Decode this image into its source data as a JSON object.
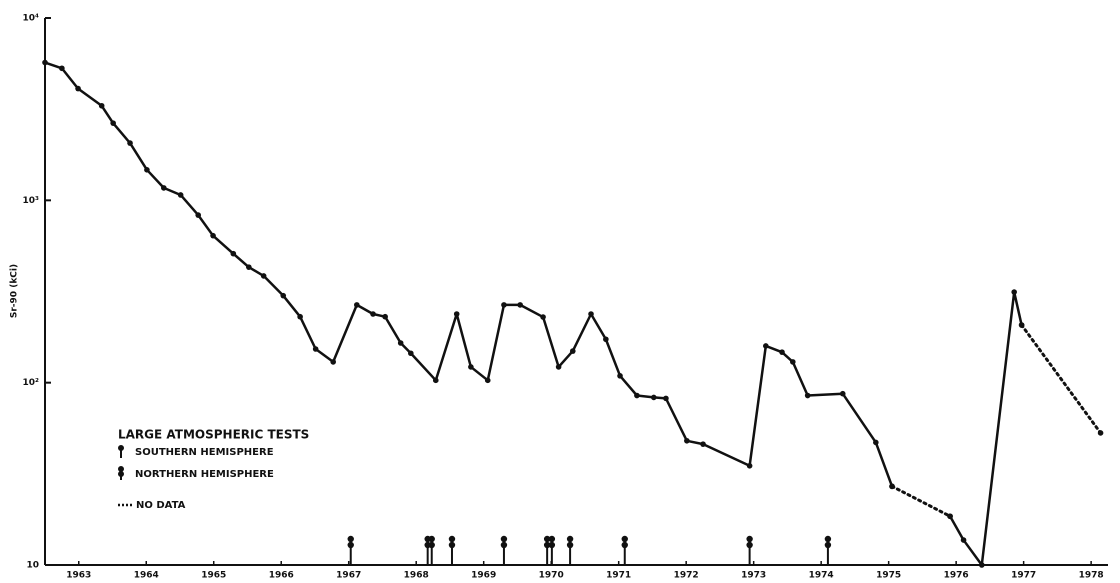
{
  "chart_data": {
    "type": "line",
    "y_label": "Sr-90 (kCi)",
    "log_y": true,
    "ylim": [
      10,
      10000
    ],
    "yticks": [
      {
        "value": 10,
        "label": "10"
      },
      {
        "value": 100,
        "label": "10²"
      },
      {
        "value": 1000,
        "label": "10³"
      },
      {
        "value": 10000,
        "label": "10⁴"
      }
    ],
    "xlim": [
      1963,
      1978.75
    ],
    "xticks": [
      {
        "value": 1963.5,
        "label": "1963"
      },
      {
        "value": 1964.5,
        "label": "1964"
      },
      {
        "value": 1965.5,
        "label": "1965"
      },
      {
        "value": 1966.5,
        "label": "1966"
      },
      {
        "value": 1967.5,
        "label": "1967"
      },
      {
        "value": 1968.5,
        "label": "1968"
      },
      {
        "value": 1969.5,
        "label": "1969"
      },
      {
        "value": 1970.5,
        "label": "1970"
      },
      {
        "value": 1971.5,
        "label": "1971"
      },
      {
        "value": 1972.5,
        "label": "1972"
      },
      {
        "value": 1973.5,
        "label": "1973"
      },
      {
        "value": 1974.5,
        "label": "1974"
      },
      {
        "value": 1975.5,
        "label": "1975"
      },
      {
        "value": 1976.5,
        "label": "1976"
      },
      {
        "value": 1977.5,
        "label": "1977"
      },
      {
        "value": 1978.5,
        "label": "1978"
      }
    ],
    "series": [
      {
        "color": "#111111",
        "style": "solid",
        "x": [
          1963.0,
          1963.25,
          1963.49,
          1963.84,
          1964.01,
          1964.26,
          1964.51,
          1964.76,
          1965.01,
          1965.27,
          1965.49,
          1965.79,
          1966.02,
          1966.24,
          1966.53,
          1966.78,
          1967.01,
          1967.27,
          1967.62,
          1967.86,
          1968.04,
          1968.27,
          1968.42,
          1968.79,
          1969.1,
          1969.31,
          1969.56,
          1969.8,
          1970.04,
          1970.38,
          1970.61,
          1970.82,
          1971.09,
          1971.31,
          1971.52,
          1971.77,
          1972.02,
          1972.2,
          1972.51,
          1972.75,
          1973.44,
          1973.68,
          1973.92,
          1974.08,
          1974.3,
          1974.82,
          1975.31,
          1975.55,
          null,
          1976.41,
          1976.61,
          1976.88,
          1977.36,
          1977.47
        ],
        "values": [
          5700,
          5300,
          4100,
          3300,
          2650,
          2060,
          1470,
          1170,
          1070,
          830,
          640,
          510,
          430,
          385,
          300,
          230,
          153,
          130,
          267,
          238,
          230,
          165,
          145,
          103,
          238,
          122,
          103,
          267,
          267,
          229,
          122,
          149,
          238,
          173,
          109,
          85,
          83,
          82,
          48,
          46,
          35,
          159,
          147,
          130,
          85,
          87,
          47,
          27,
          null,
          18.5,
          13.7,
          10,
          314,
          207
        ]
      },
      {
        "name": "NO DATA",
        "color": "#111111",
        "style": "dotted",
        "x": [
          1975.55,
          1976.41,
          null,
          1977.47,
          1978.64
        ],
        "values": [
          27,
          18.5,
          null,
          207,
          53
        ]
      }
    ],
    "legend_title": "LARGE ATMOSPHERIC TESTS",
    "test_legend": [
      "SOUTHERN HEMISPHERE",
      "NORTHERN HEMISPHERE"
    ],
    "tests_x": [
      1967.53,
      1968.67,
      1968.73,
      1969.03,
      1969.8,
      1970.44,
      1970.51,
      1970.78,
      1971.59,
      1973.44,
      1974.6
    ]
  }
}
